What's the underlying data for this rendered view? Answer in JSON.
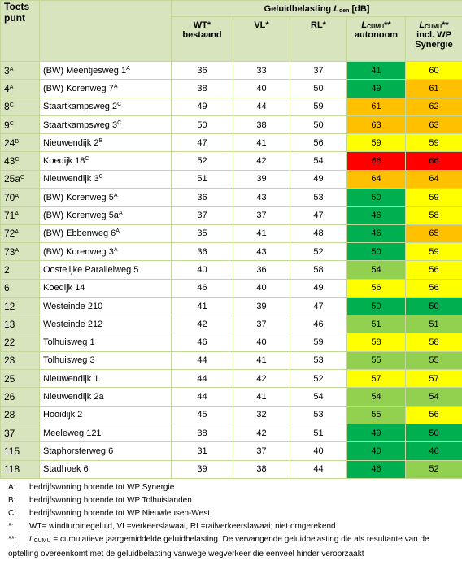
{
  "header": {
    "toets": "Toets punt",
    "title_text": "Geluidbelasting ",
    "title_symbol": "L",
    "title_sub": "den",
    "title_unit": " [dB]",
    "wt": [
      "WT*",
      "bestaand"
    ],
    "vl": "VL*",
    "rl": "RL*",
    "autonoom": {
      "symbol": "L",
      "sub": "CUMU",
      "mark": "**",
      "lines": [
        "autonoom"
      ]
    },
    "synergie": {
      "symbol": "L",
      "sub": "CUMU",
      "mark": "**",
      "lines": [
        "incl. WP",
        "Synergie"
      ]
    }
  },
  "table": {
    "rows": [
      {
        "id": "3",
        "id_sup": "A",
        "name": "(BW) Meentjesweg 1",
        "name_sup": "A",
        "wt": "36",
        "vl": "33",
        "rl": "37",
        "autonoom": "41",
        "synergie": "60",
        "colors": [
          "#00b050",
          "#ffff00"
        ]
      },
      {
        "id": "4",
        "id_sup": "A",
        "name": "(BW) Korenweg 7",
        "name_sup": "A",
        "wt": "38",
        "vl": "40",
        "rl": "50",
        "autonoom": "49",
        "synergie": "61",
        "colors": [
          "#00b050",
          "#ffc000"
        ]
      },
      {
        "id": "8",
        "id_sup": "C",
        "name": "Staartkampsweg 2",
        "name_sup": "C",
        "wt": "49",
        "vl": "44",
        "rl": "59",
        "autonoom": "61",
        "synergie": "62",
        "colors": [
          "#ffc000",
          "#ffc000"
        ]
      },
      {
        "id": "9",
        "id_sup": "C",
        "name": "Staartkampsweg 3",
        "name_sup": "C",
        "wt": "50",
        "vl": "38",
        "rl": "50",
        "autonoom": "63",
        "synergie": "63",
        "colors": [
          "#ffc000",
          "#ffc000"
        ]
      },
      {
        "id": "24",
        "id_sup": "B",
        "name": "Nieuwendijk 2",
        "name_sup": "B",
        "wt": "47",
        "vl": "41",
        "rl": "56",
        "autonoom": "59",
        "synergie": "59",
        "colors": [
          "#ffff00",
          "#ffff00"
        ]
      },
      {
        "id": "43",
        "id_sup": "C",
        "name": "Koedijk 18",
        "name_sup": "C",
        "wt": "52",
        "vl": "42",
        "rl": "54",
        "autonoom": "66",
        "synergie": "66",
        "colors": [
          "#ff0000",
          "#ff0000"
        ]
      },
      {
        "id": "25a",
        "id_sup": "C",
        "name": "Nieuwendijk 3",
        "name_sup": "C",
        "wt": "51",
        "vl": "39",
        "rl": "49",
        "autonoom": "64",
        "synergie": "64",
        "colors": [
          "#ffc000",
          "#ffc000"
        ]
      },
      {
        "id": "70",
        "id_sup": "A",
        "name": "(BW) Korenweg 5",
        "name_sup": "A",
        "wt": "36",
        "vl": "43",
        "rl": "53",
        "autonoom": "50",
        "synergie": "59",
        "colors": [
          "#00b050",
          "#ffff00"
        ]
      },
      {
        "id": "71",
        "id_sup": "A",
        "name": "(BW) Korenweg 5a",
        "name_sup": "A",
        "wt": "37",
        "vl": "37",
        "rl": "47",
        "autonoom": "46",
        "synergie": "58",
        "colors": [
          "#00b050",
          "#ffff00"
        ]
      },
      {
        "id": "72",
        "id_sup": "A",
        "name": "(BW) Ebbenweg 6",
        "name_sup": "A",
        "wt": "35",
        "vl": "41",
        "rl": "48",
        "autonoom": "46",
        "synergie": "65",
        "colors": [
          "#00b050",
          "#ffc000"
        ]
      },
      {
        "id": "73",
        "id_sup": "A",
        "name": "(BW) Korenweg 3",
        "name_sup": "A",
        "wt": "36",
        "vl": "43",
        "rl": "52",
        "autonoom": "50",
        "synergie": "59",
        "colors": [
          "#00b050",
          "#ffff00"
        ]
      },
      {
        "id": "2",
        "name": "Oostelijke Parallelweg 5",
        "wt": "40",
        "vl": "36",
        "rl": "58",
        "autonoom": "54",
        "synergie": "56",
        "colors": [
          "#92d050",
          "#ffff00"
        ]
      },
      {
        "id": "6",
        "name": "Koedijk 14",
        "wt": "46",
        "vl": "40",
        "rl": "49",
        "autonoom": "56",
        "synergie": "56",
        "colors": [
          "#ffff00",
          "#ffff00"
        ]
      },
      {
        "id": "12",
        "name": "Westeinde 210",
        "wt": "41",
        "vl": "39",
        "rl": "47",
        "autonoom": "50",
        "synergie": "50",
        "colors": [
          "#00b050",
          "#00b050"
        ]
      },
      {
        "id": "13",
        "name": "Westeinde 212",
        "wt": "42",
        "vl": "37",
        "rl": "46",
        "autonoom": "51",
        "synergie": "51",
        "colors": [
          "#92d050",
          "#92d050"
        ]
      },
      {
        "id": "22",
        "name": "Tolhuisweg 1",
        "wt": "46",
        "vl": "40",
        "rl": "59",
        "autonoom": "58",
        "synergie": "58",
        "colors": [
          "#ffff00",
          "#ffff00"
        ]
      },
      {
        "id": "23",
        "name": "Tolhuisweg 3",
        "wt": "44",
        "vl": "41",
        "rl": "53",
        "autonoom": "55",
        "synergie": "55",
        "colors": [
          "#92d050",
          "#92d050"
        ]
      },
      {
        "id": "25",
        "name": "Nieuwendijk 1",
        "wt": "44",
        "vl": "42",
        "rl": "52",
        "autonoom": "57",
        "synergie": "57",
        "colors": [
          "#ffff00",
          "#ffff00"
        ]
      },
      {
        "id": "26",
        "name": "Nieuwendijk 2a",
        "wt": "44",
        "vl": "41",
        "rl": "54",
        "autonoom": "54",
        "synergie": "54",
        "colors": [
          "#92d050",
          "#92d050"
        ]
      },
      {
        "id": "28",
        "name": "Hooidijk 2",
        "wt": "45",
        "vl": "32",
        "rl": "53",
        "autonoom": "55",
        "synergie": "56",
        "colors": [
          "#92d050",
          "#ffff00"
        ]
      },
      {
        "id": "37",
        "name": "Meeleweg 121",
        "wt": "38",
        "vl": "42",
        "rl": "51",
        "autonoom": "49",
        "synergie": "50",
        "colors": [
          "#00b050",
          "#00b050"
        ]
      },
      {
        "id": "115",
        "name": "Staphorsterweg 6",
        "wt": "31",
        "vl": "37",
        "rl": "40",
        "autonoom": "40",
        "synergie": "46",
        "colors": [
          "#00b050",
          "#00b050"
        ]
      },
      {
        "id": "118",
        "name": "Stadhoek 6",
        "wt": "39",
        "vl": "38",
        "rl": "44",
        "autonoom": "46",
        "synergie": "52",
        "colors": [
          "#00b050",
          "#92d050"
        ]
      }
    ]
  },
  "footnotes": [
    {
      "key": "A:",
      "text": "bedrijfswoning horende tot WP Synergie"
    },
    {
      "key": "B:",
      "text": "bedrijfswoning horende tot WP Tolhuislanden"
    },
    {
      "key": "C:",
      "text": "bedrijfswoning horende tot WP Nieuwleusen-West"
    },
    {
      "key": "*:",
      "text": "WT= windturbinegeluid, VL=verkeerslawaai, RL=railverkeerslawaai; niet omgerekend"
    },
    {
      "key": "**:",
      "symbol": "L",
      "sub": "CUMU",
      "text": " = cumulatieve jaargemiddelde geluidbelasting. De vervangende geluidbelasting die als resultante van de optelling overeenkomt met de geluidbelasting vanwege wegverkeer die eenveel hinder veroorzaakt"
    }
  ]
}
